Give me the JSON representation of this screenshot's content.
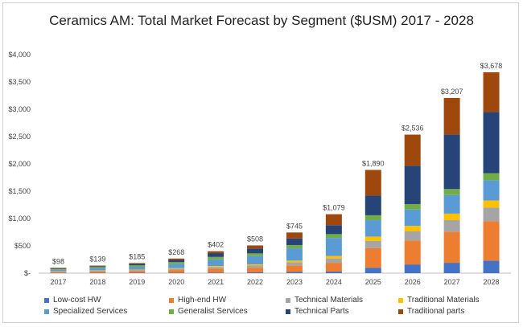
{
  "chart_data": {
    "type": "bar",
    "stacked": true,
    "title": "Ceramics AM: Total Market Forecast by Segment ($USM) 2017 - 2028",
    "xlabel": "",
    "ylabel": "",
    "ylim": [
      0,
      4000
    ],
    "yticks": [
      0,
      500,
      1000,
      1500,
      2000,
      2500,
      3000,
      3500,
      4000
    ],
    "ytick_labels": [
      "$-",
      "$500",
      "$1,000",
      "$1,500",
      "$2,000",
      "$2,500",
      "$3,000",
      "$3,500",
      "$4,000"
    ],
    "categories": [
      "2017",
      "2018",
      "2019",
      "2020",
      "2021",
      "2022",
      "2023",
      "2024",
      "2025",
      "2026",
      "2027",
      "2028"
    ],
    "total_labels": [
      "$98",
      "$139",
      "$185",
      "$268",
      "$402",
      "$508",
      "$745",
      "$1,079",
      "$1,890",
      "$2,536",
      "$3,207",
      "$3,678"
    ],
    "totals": [
      98,
      139,
      185,
      268,
      402,
      508,
      745,
      1079,
      1890,
      2536,
      3207,
      3678
    ],
    "series": [
      {
        "name": "Low-cost HW",
        "color": "#4472c4",
        "values": [
          5,
          6,
          7,
          8,
          12,
          15,
          22,
          30,
          100,
          160,
          190,
          230
        ]
      },
      {
        "name": "High-end HW",
        "color": "#ed7d31",
        "values": [
          20,
          28,
          35,
          50,
          70,
          85,
          120,
          160,
          360,
          440,
          570,
          720
        ]
      },
      {
        "name": "Technical Materials",
        "color": "#a5a5a5",
        "values": [
          8,
          12,
          16,
          22,
          32,
          40,
          58,
          80,
          130,
          165,
          210,
          250
        ]
      },
      {
        "name": "Traditional Materials",
        "color": "#ffc000",
        "values": [
          4,
          6,
          8,
          12,
          18,
          22,
          30,
          45,
          80,
          100,
          120,
          130
        ]
      },
      {
        "name": "Specialized Services",
        "color": "#5b9bd5",
        "values": [
          25,
          40,
          52,
          75,
          120,
          150,
          225,
          330,
          300,
          300,
          340,
          370
        ]
      },
      {
        "name": "Generalist Services",
        "color": "#70ad47",
        "values": [
          15,
          20,
          25,
          35,
          45,
          50,
          60,
          70,
          90,
          100,
          110,
          130
        ]
      },
      {
        "name": "Technical Parts",
        "color": "#264478",
        "values": [
          12,
          17,
          27,
          41,
          70,
          90,
          120,
          164,
          360,
          700,
          1000,
          1120
        ]
      },
      {
        "name": "Traditional parts",
        "color": "#9e480e",
        "values": [
          9,
          10,
          15,
          25,
          35,
          56,
          110,
          200,
          470,
          571,
          667,
          728
        ]
      }
    ],
    "legend_position": "bottom",
    "grid": false
  }
}
